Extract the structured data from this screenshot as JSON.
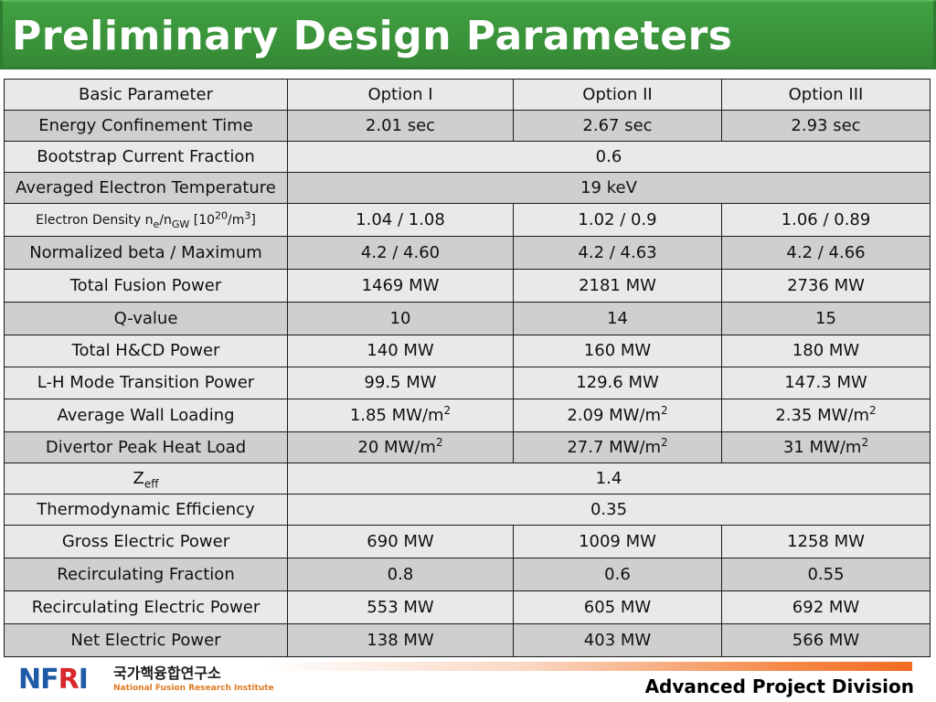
{
  "title": "Preliminary Design Parameters",
  "table": {
    "header": [
      "Basic Parameter",
      "Option I",
      "Option II",
      "Option III"
    ],
    "rows": [
      {
        "label": "Energy Confinement Time",
        "values": [
          "2.01 sec",
          "2.67 sec",
          "2.93 sec"
        ]
      },
      {
        "label": "Bootstrap Current Fraction",
        "merged": "0.6"
      },
      {
        "label": "Averaged Electron Temperature",
        "merged": "19 keV"
      },
      {
        "label_parts": {
          "pre": "Electron Density n",
          "sub1": "e",
          "mid": "/n",
          "sub2": "GW",
          "bracket_open": " [10",
          "sup1": "20",
          "unit": "/m",
          "sup2": "3",
          "bracket_close": "]"
        },
        "values": [
          "1.04 / 1.08",
          "1.02 / 0.9",
          "1.06 / 0.89"
        ]
      },
      {
        "label": "Normalized beta / Maximum",
        "values": [
          "4.2 / 4.60",
          "4.2 / 4.63",
          "4.2 / 4.66"
        ]
      },
      {
        "label": "Total Fusion Power",
        "values": [
          "1469 MW",
          "2181 MW",
          "2736 MW"
        ]
      },
      {
        "label": "Q-value",
        "values": [
          "10",
          "14",
          "15"
        ]
      },
      {
        "label": "Total H&CD Power",
        "values": [
          "140 MW",
          "160 MW",
          "180 MW"
        ]
      },
      {
        "label": "L-H Mode Transition Power",
        "values": [
          "99.5 MW",
          "129.6 MW",
          "147.3 MW"
        ]
      },
      {
        "label": "Average Wall Loading",
        "values_base": [
          "1.85 MW/m",
          "2.09 MW/m",
          "2.35 MW/m"
        ],
        "values_sup": [
          "2",
          "2",
          "2"
        ]
      },
      {
        "label": "Divertor Peak Heat Load",
        "values_base": [
          "20 MW/m",
          "27.7 MW/m",
          "31 MW/m"
        ],
        "values_sup": [
          "2",
          "2",
          "2"
        ]
      },
      {
        "label_base": "Z",
        "label_sub": "eff",
        "merged": "1.4"
      },
      {
        "label": "Thermodynamic Efficiency",
        "merged": "0.35"
      },
      {
        "label": "Gross Electric Power",
        "values": [
          "690 MW",
          "1009 MW",
          "1258 MW"
        ]
      },
      {
        "label": "Recirculating Fraction",
        "values": [
          "0.8",
          "0.6",
          "0.55"
        ]
      },
      {
        "label": "Recirculating Electric Power",
        "values": [
          "553 MW",
          "605 MW",
          "692 MW"
        ]
      },
      {
        "label": "Net Electric Power",
        "values": [
          "138 MW",
          "403 MW",
          "566 MW"
        ]
      }
    ]
  },
  "footer": {
    "logo_letters_a": "NF",
    "logo_letters_r": "R",
    "logo_letters_b": "I",
    "logo_korean": "국가핵융합연구소",
    "logo_english": "National Fusion Research Institute",
    "division": "Advanced Project Division"
  },
  "colors": {
    "title_bar": "#3a8f3a",
    "row_light": "#e9e9e9",
    "row_dark": "#cfcfcf",
    "logo_blue": "#1f5aa6",
    "logo_red": "#d8262b",
    "accent_orange": "#f26b22"
  }
}
